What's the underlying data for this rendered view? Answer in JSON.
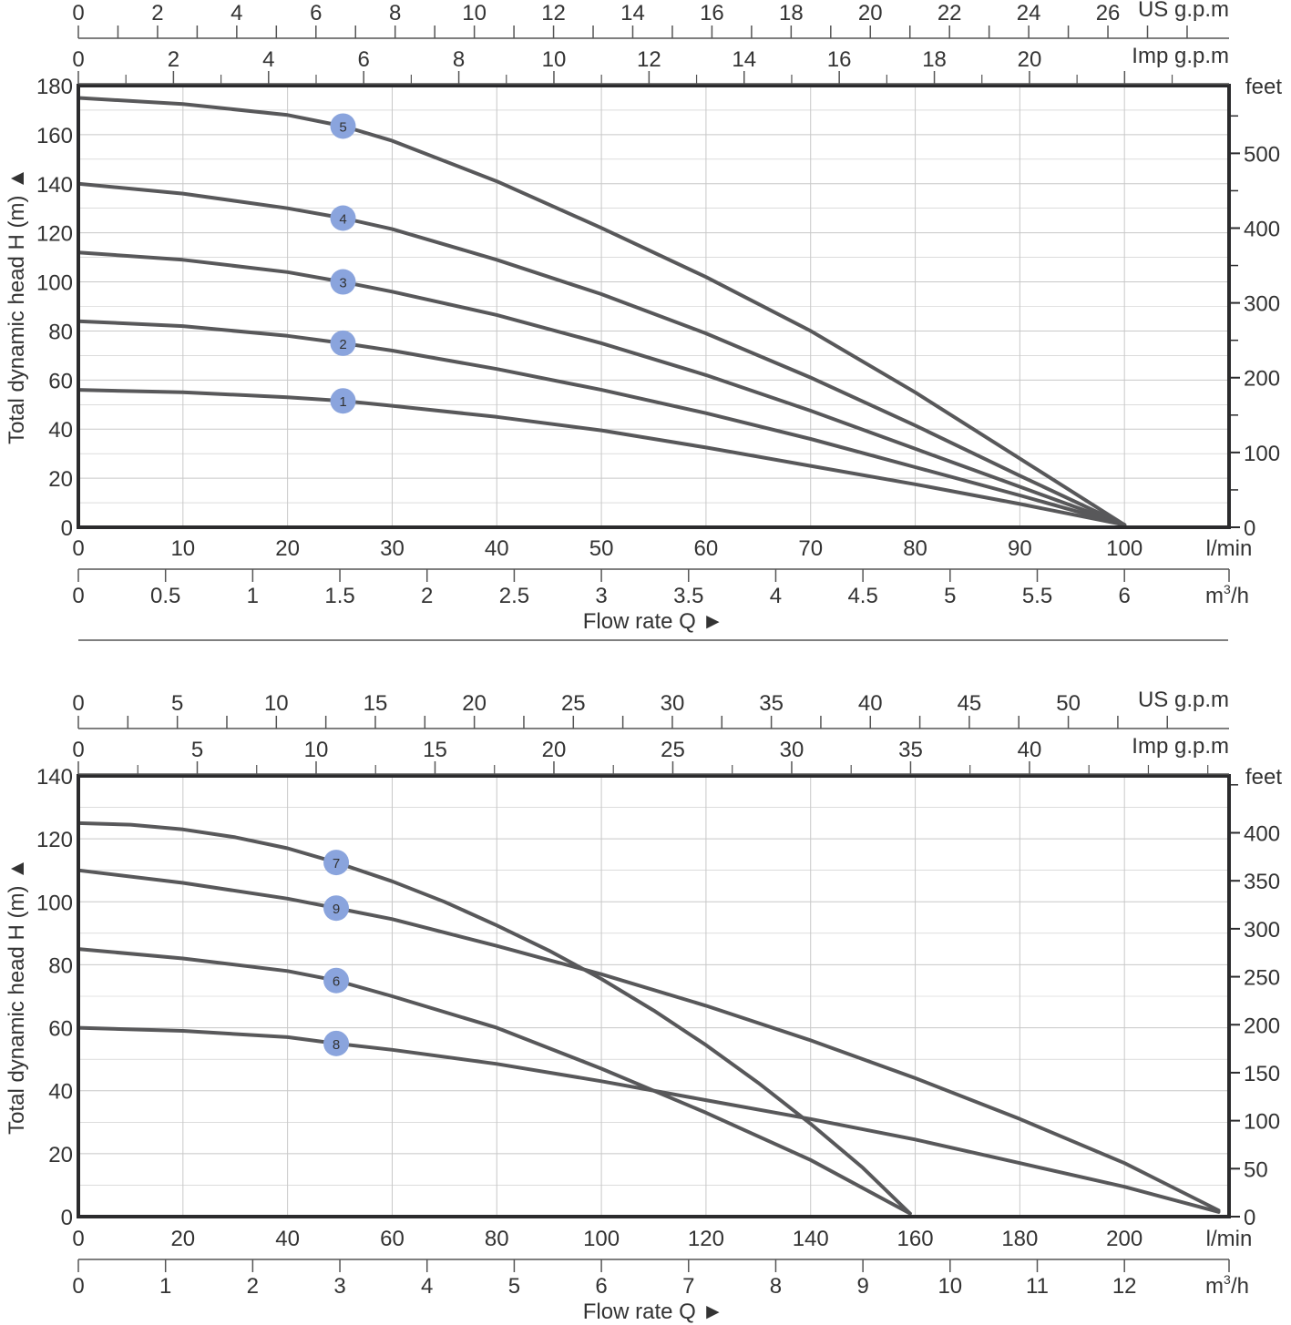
{
  "colors": {
    "curve": "#58585a",
    "frame": "#2b2b2d",
    "grid": "#c8c8c8",
    "marker": "#8aa4dd",
    "marker_text": "#ffffff",
    "text": "#333333"
  },
  "chart_data": [
    {
      "type": "line",
      "title": "",
      "ylabel": "Total dynamic head H (m) ▲",
      "xlabel": "Flow rate Q ►",
      "xlim": [
        0,
        110
      ],
      "ylim": [
        0,
        180
      ],
      "x_unit": "l/min",
      "y_unit_right": "feet",
      "y_ticks": [
        0,
        20,
        40,
        60,
        80,
        100,
        120,
        140,
        160,
        180
      ],
      "y_tick_labels": [
        "0",
        "20",
        "40",
        "60",
        "80",
        "100",
        "120",
        "140",
        "160",
        "180"
      ],
      "x_ticks": [
        0,
        10,
        20,
        30,
        40,
        50,
        60,
        70,
        80,
        90,
        100
      ],
      "x_tick_labels": [
        "0",
        "10",
        "20",
        "30",
        "40",
        "50",
        "60",
        "70",
        "80",
        "90",
        "100"
      ],
      "m3h": {
        "unit": "m³/h",
        "unit_base": "m",
        "unit_sup": "3",
        "unit_tail": "/h",
        "ticks": [
          0,
          0.5,
          1,
          1.5,
          2,
          2.5,
          3,
          3.5,
          4,
          4.5,
          5,
          5.5,
          6
        ],
        "labels": [
          "0",
          "0.5",
          "1",
          "1.5",
          "2",
          "2.5",
          "3",
          "3.5",
          "4",
          "4.5",
          "5",
          "5.5",
          "6"
        ],
        "max": 6.6
      },
      "us_gpm": {
        "unit": "US g.p.m",
        "major": [
          0,
          2,
          4,
          6,
          8,
          10,
          12,
          14,
          16,
          18,
          20,
          22,
          24,
          26
        ],
        "labels": [
          "0",
          "2",
          "4",
          "6",
          "8",
          "10",
          "12",
          "14",
          "16",
          "18",
          "20",
          "22",
          "24",
          "26"
        ],
        "minor": [
          1,
          3,
          5,
          7,
          9,
          11,
          13,
          15,
          17,
          19,
          21,
          23,
          25,
          27,
          28
        ]
      },
      "imp_gpm": {
        "unit": "Imp g.p.m",
        "major": [
          0,
          2,
          4,
          6,
          8,
          10,
          12,
          14,
          16,
          18,
          20,
          22
        ],
        "labels": [
          "0",
          "2",
          "4",
          "6",
          "8",
          "10",
          "12",
          "14",
          "16",
          "18",
          "20",
          ""
        ],
        "minor": [
          1,
          3,
          5,
          7,
          9,
          11,
          13,
          15,
          17,
          19,
          21,
          23
        ]
      },
      "feet": {
        "ticks": [
          0,
          100,
          200,
          300,
          400,
          500
        ],
        "labels": [
          "0",
          "100",
          "200",
          "300",
          "400",
          "500"
        ],
        "minor": [
          50,
          150,
          250,
          350,
          450,
          550
        ]
      },
      "series": [
        {
          "name": "1",
          "marker_x": 25.3,
          "x": [
            0,
            10,
            20,
            25.3,
            30,
            40,
            50,
            60,
            70,
            80,
            90,
            100
          ],
          "y": [
            56,
            55,
            53,
            51.5,
            49.5,
            45,
            39.5,
            32.5,
            25,
            17.5,
            9.5,
            1
          ]
        },
        {
          "name": "2",
          "marker_x": 25.3,
          "x": [
            0,
            10,
            20,
            25.3,
            30,
            40,
            50,
            60,
            70,
            80,
            90,
            100
          ],
          "y": [
            84,
            82,
            78,
            75,
            72,
            64.5,
            56,
            46.5,
            36,
            24.5,
            13,
            1
          ]
        },
        {
          "name": "3",
          "marker_x": 25.3,
          "x": [
            0,
            10,
            20,
            25.3,
            30,
            40,
            50,
            60,
            70,
            80,
            90,
            100
          ],
          "y": [
            112,
            109,
            104,
            100,
            96,
            86.5,
            75,
            62,
            47.5,
            32,
            16.5,
            1
          ]
        },
        {
          "name": "4",
          "marker_x": 25.3,
          "x": [
            0,
            10,
            20,
            25.3,
            30,
            40,
            50,
            60,
            70,
            80,
            90,
            100
          ],
          "y": [
            140,
            136,
            130,
            126,
            121.5,
            109,
            95,
            79,
            61,
            41.5,
            21,
            1
          ]
        },
        {
          "name": "5",
          "marker_x": 25.3,
          "x": [
            0,
            10,
            20,
            25.3,
            30,
            40,
            50,
            60,
            70,
            80,
            90,
            100
          ],
          "y": [
            175,
            172.5,
            168,
            163.5,
            157.5,
            141,
            122,
            102,
            80,
            55,
            28,
            1
          ]
        }
      ]
    },
    {
      "type": "line",
      "title": "",
      "ylabel": "Total dynamic head H (m) ▲",
      "xlabel": "Flow rate Q ►",
      "xlim": [
        0,
        220
      ],
      "ylim": [
        0,
        140
      ],
      "x_unit": "l/min",
      "y_unit_right": "feet",
      "y_ticks": [
        0,
        20,
        40,
        60,
        80,
        100,
        120,
        140
      ],
      "y_tick_labels": [
        "0",
        "20",
        "40",
        "60",
        "80",
        "100",
        "120",
        "140"
      ],
      "x_ticks": [
        0,
        20,
        40,
        60,
        80,
        100,
        120,
        140,
        160,
        180,
        200
      ],
      "x_tick_labels": [
        "0",
        "20",
        "40",
        "60",
        "80",
        "100",
        "120",
        "140",
        "160",
        "180",
        "200"
      ],
      "m3h": {
        "unit": "m³/h",
        "unit_base": "m",
        "unit_sup": "3",
        "unit_tail": "/h",
        "ticks": [
          0,
          1,
          2,
          3,
          4,
          5,
          6,
          7,
          8,
          9,
          10,
          11,
          12
        ],
        "labels": [
          "0",
          "1",
          "2",
          "3",
          "4",
          "5",
          "6",
          "7",
          "8",
          "9",
          "10",
          "11",
          "12"
        ],
        "max": 13.2
      },
      "us_gpm": {
        "unit": "US g.p.m",
        "major": [
          0,
          5,
          10,
          15,
          20,
          25,
          30,
          35,
          40,
          45,
          50
        ],
        "labels": [
          "0",
          "5",
          "10",
          "15",
          "20",
          "25",
          "30",
          "35",
          "40",
          "45",
          "50"
        ],
        "minor": [
          2.5,
          7.5,
          12.5,
          17.5,
          22.5,
          27.5,
          32.5,
          37.5,
          42.5,
          47.5,
          52.5,
          55
        ]
      },
      "imp_gpm": {
        "unit": "Imp g.p.m",
        "major": [
          0,
          5,
          10,
          15,
          20,
          25,
          30,
          35,
          40
        ],
        "labels": [
          "0",
          "5",
          "10",
          "15",
          "20",
          "25",
          "30",
          "35",
          "40"
        ],
        "minor": [
          2.5,
          7.5,
          12.5,
          17.5,
          22.5,
          27.5,
          32.5,
          37.5,
          42.5,
          45,
          47.5
        ]
      },
      "feet": {
        "ticks": [
          0,
          50,
          100,
          150,
          200,
          250,
          300,
          350,
          400
        ],
        "labels": [
          "0",
          "50",
          "100",
          "150",
          "200",
          "250",
          "300",
          "350",
          "400"
        ],
        "minor": [
          450
        ]
      },
      "series": [
        {
          "name": "7",
          "marker_x": 49.3,
          "x": [
            0,
            10,
            20,
            30,
            40,
            49.3,
            60,
            70,
            80,
            90,
            100,
            110,
            120,
            130,
            140,
            150,
            159
          ],
          "y": [
            125,
            124.5,
            123,
            120.5,
            117,
            112.5,
            106.5,
            100,
            92.5,
            84.5,
            75.5,
            65.5,
            54.5,
            42.5,
            29.5,
            15.5,
            1
          ]
        },
        {
          "name": "9",
          "marker_x": 49.3,
          "x": [
            0,
            20,
            40,
            49.3,
            60,
            80,
            100,
            120,
            140,
            160,
            180,
            200,
            218
          ],
          "y": [
            110,
            106,
            101,
            98,
            94.5,
            86,
            77,
            67,
            56,
            44,
            31,
            17,
            2
          ]
        },
        {
          "name": "6",
          "marker_x": 49.3,
          "x": [
            0,
            20,
            40,
            49.3,
            60,
            80,
            100,
            120,
            140,
            159
          ],
          "y": [
            85,
            82,
            78,
            75,
            70,
            60,
            47,
            33,
            18,
            1
          ]
        },
        {
          "name": "8",
          "marker_x": 49.3,
          "x": [
            0,
            20,
            40,
            49.3,
            60,
            80,
            100,
            120,
            140,
            160,
            180,
            200,
            218
          ],
          "y": [
            60,
            59,
            57,
            55,
            53,
            48.5,
            43,
            37,
            31,
            24.5,
            17,
            9.5,
            1.5
          ]
        }
      ]
    }
  ]
}
